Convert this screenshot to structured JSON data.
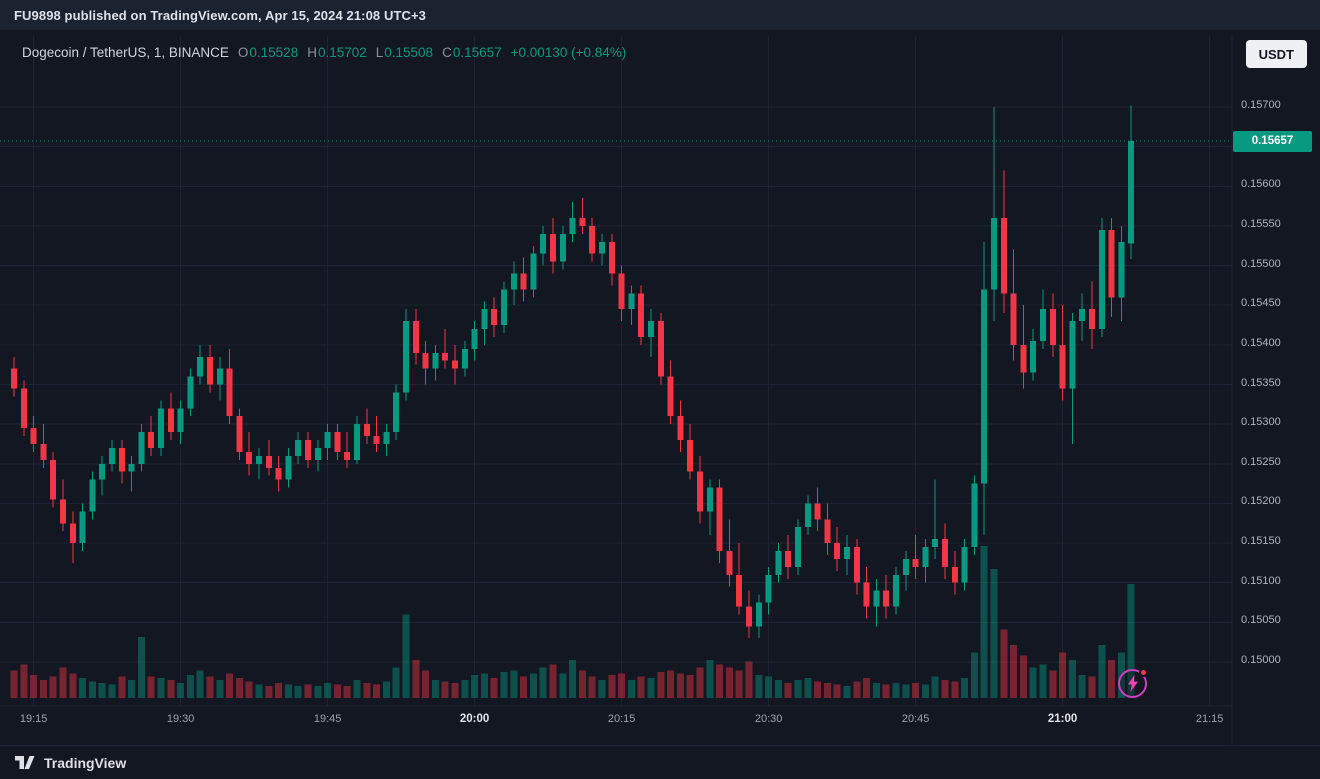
{
  "attribution": {
    "text": "FU9898 published on TradingView.com, Apr 15, 2024 21:08 UTC+3"
  },
  "header": {
    "symbol": "Dogecoin / TetherUS, 1, BINANCE",
    "ohlc": [
      {
        "label": "O",
        "value": "0.15528"
      },
      {
        "label": "H",
        "value": "0.15702"
      },
      {
        "label": "L",
        "value": "0.15508"
      },
      {
        "label": "C",
        "value": "0.15657"
      }
    ],
    "change": "+0.00130 (+0.84%)",
    "currency_button": "USDT"
  },
  "price_axis": {
    "tick_labels": [
      "0.15700",
      "0.15600",
      "0.15550",
      "0.15500",
      "0.15450",
      "0.15400",
      "0.15350",
      "0.15300",
      "0.15250",
      "0.15200",
      "0.15150",
      "0.15100",
      "0.15050",
      "0.15000"
    ],
    "last_price_label": "0.15657"
  },
  "time_axis": {
    "labels": [
      {
        "text": "19:15",
        "index": 2,
        "major": false
      },
      {
        "text": "19:30",
        "index": 17,
        "major": false
      },
      {
        "text": "19:45",
        "index": 32,
        "major": false
      },
      {
        "text": "20:00",
        "index": 47,
        "major": true
      },
      {
        "text": "20:15",
        "index": 62,
        "major": false
      },
      {
        "text": "20:30",
        "index": 77,
        "major": false
      },
      {
        "text": "20:45",
        "index": 92,
        "major": false
      },
      {
        "text": "21:00",
        "index": 107,
        "major": true
      },
      {
        "text": "21:15",
        "index": 122,
        "major": false
      }
    ]
  },
  "footer": {
    "brand": "TradingView"
  },
  "icons": {
    "flash": "lightning-bolt-icon",
    "logo": "tradingview-mark"
  },
  "colors": {
    "bg": "#131722",
    "up": "#089981",
    "down": "#f23645",
    "vol_up": "rgba(8,153,129,0.45)",
    "vol_down": "rgba(242,54,69,0.45)",
    "grid": "#1d2332",
    "axis_text": "#b2b5be",
    "badge_bg": "#089981",
    "badge_text": "#ffffff",
    "flash_ring": "#cf3ec1"
  },
  "chart_data": {
    "type": "candlestick",
    "title": "Dogecoin / TetherUS",
    "exchange": "BINANCE",
    "interval": "1 minute",
    "start_time": "19:13",
    "step_minutes": 1,
    "y_min": 0.15,
    "y_max": 0.157,
    "y_step": 0.0005,
    "last_price": 0.15657,
    "price_unit": 1e-05,
    "candles_format": [
      "open",
      "high",
      "low",
      "close",
      "volume_rel"
    ],
    "candles": [
      [
        15370,
        15385,
        15335,
        15345,
        18
      ],
      [
        15345,
        15355,
        15285,
        15295,
        22
      ],
      [
        15295,
        15310,
        15265,
        15275,
        15
      ],
      [
        15275,
        15300,
        15245,
        15255,
        12
      ],
      [
        15255,
        15265,
        15195,
        15205,
        14
      ],
      [
        15205,
        15230,
        15165,
        15175,
        20
      ],
      [
        15175,
        15190,
        15125,
        15150,
        16
      ],
      [
        15150,
        15200,
        15140,
        15190,
        13
      ],
      [
        15190,
        15240,
        15180,
        15230,
        11
      ],
      [
        15230,
        15260,
        15210,
        15250,
        10
      ],
      [
        15250,
        15280,
        15240,
        15270,
        9
      ],
      [
        15270,
        15280,
        15225,
        15240,
        14
      ],
      [
        15240,
        15260,
        15215,
        15250,
        12
      ],
      [
        15250,
        15300,
        15240,
        15290,
        40
      ],
      [
        15290,
        15310,
        15260,
        15270,
        14
      ],
      [
        15270,
        15330,
        15260,
        15320,
        13
      ],
      [
        15320,
        15340,
        15280,
        15290,
        12
      ],
      [
        15290,
        15330,
        15275,
        15320,
        10
      ],
      [
        15320,
        15370,
        15310,
        15360,
        15
      ],
      [
        15360,
        15400,
        15350,
        15385,
        18
      ],
      [
        15385,
        15400,
        15340,
        15350,
        14
      ],
      [
        15350,
        15385,
        15330,
        15370,
        12
      ],
      [
        15370,
        15395,
        15300,
        15310,
        16
      ],
      [
        15310,
        15320,
        15255,
        15265,
        13
      ],
      [
        15265,
        15290,
        15235,
        15250,
        11
      ],
      [
        15250,
        15270,
        15230,
        15260,
        9
      ],
      [
        15260,
        15280,
        15235,
        15245,
        8
      ],
      [
        15245,
        15260,
        15215,
        15230,
        10
      ],
      [
        15230,
        15270,
        15220,
        15260,
        9
      ],
      [
        15260,
        15290,
        15250,
        15280,
        8
      ],
      [
        15280,
        15290,
        15245,
        15255,
        9
      ],
      [
        15255,
        15280,
        15240,
        15270,
        8
      ],
      [
        15270,
        15300,
        15255,
        15290,
        10
      ],
      [
        15290,
        15300,
        15255,
        15265,
        9
      ],
      [
        15265,
        15290,
        15245,
        15255,
        8
      ],
      [
        15255,
        15310,
        15250,
        15300,
        12
      ],
      [
        15300,
        15320,
        15275,
        15285,
        10
      ],
      [
        15285,
        15310,
        15265,
        15275,
        9
      ],
      [
        15275,
        15300,
        15260,
        15290,
        11
      ],
      [
        15290,
        15350,
        15280,
        15340,
        20
      ],
      [
        15340,
        15445,
        15330,
        15430,
        55
      ],
      [
        15430,
        15445,
        15375,
        15390,
        25
      ],
      [
        15390,
        15405,
        15350,
        15370,
        18
      ],
      [
        15370,
        15400,
        15355,
        15390,
        12
      ],
      [
        15390,
        15420,
        15370,
        15380,
        11
      ],
      [
        15380,
        15400,
        15350,
        15370,
        10
      ],
      [
        15370,
        15405,
        15360,
        15395,
        12
      ],
      [
        15395,
        15430,
        15380,
        15420,
        15
      ],
      [
        15420,
        15455,
        15400,
        15445,
        16
      ],
      [
        15445,
        15460,
        15410,
        15425,
        13
      ],
      [
        15425,
        15480,
        15415,
        15470,
        17
      ],
      [
        15470,
        15505,
        15450,
        15490,
        18
      ],
      [
        15490,
        15510,
        15455,
        15470,
        14
      ],
      [
        15470,
        15525,
        15460,
        15515,
        16
      ],
      [
        15515,
        15550,
        15500,
        15540,
        20
      ],
      [
        15540,
        15560,
        15490,
        15505,
        22
      ],
      [
        15505,
        15550,
        15495,
        15540,
        16
      ],
      [
        15540,
        15580,
        15530,
        15560,
        25
      ],
      [
        15560,
        15585,
        15540,
        15550,
        18
      ],
      [
        15550,
        15560,
        15505,
        15515,
        14
      ],
      [
        15515,
        15540,
        15500,
        15530,
        12
      ],
      [
        15530,
        15540,
        15475,
        15490,
        15
      ],
      [
        15490,
        15500,
        15430,
        15445,
        16
      ],
      [
        15445,
        15475,
        15425,
        15465,
        12
      ],
      [
        15465,
        15475,
        15400,
        15410,
        14
      ],
      [
        15410,
        15445,
        15385,
        15430,
        13
      ],
      [
        15430,
        15440,
        15350,
        15360,
        17
      ],
      [
        15360,
        15380,
        15300,
        15310,
        18
      ],
      [
        15310,
        15330,
        15265,
        15280,
        16
      ],
      [
        15280,
        15300,
        15230,
        15240,
        15
      ],
      [
        15240,
        15260,
        15175,
        15190,
        20
      ],
      [
        15190,
        15230,
        15160,
        15220,
        25
      ],
      [
        15220,
        15230,
        15125,
        15140,
        22
      ],
      [
        15140,
        15180,
        15095,
        15110,
        20
      ],
      [
        15110,
        15150,
        15060,
        15070,
        18
      ],
      [
        15070,
        15090,
        15030,
        15045,
        24
      ],
      [
        15045,
        15085,
        15030,
        15075,
        15
      ],
      [
        15075,
        15120,
        15060,
        15110,
        14
      ],
      [
        15110,
        15150,
        15100,
        15140,
        12
      ],
      [
        15140,
        15160,
        15105,
        15120,
        10
      ],
      [
        15120,
        15180,
        15110,
        15170,
        12
      ],
      [
        15170,
        15210,
        15160,
        15200,
        13
      ],
      [
        15200,
        15220,
        15165,
        15180,
        11
      ],
      [
        15180,
        15200,
        15135,
        15150,
        10
      ],
      [
        15150,
        15170,
        15115,
        15130,
        9
      ],
      [
        15130,
        15160,
        15110,
        15145,
        8
      ],
      [
        15145,
        15155,
        15085,
        15100,
        11
      ],
      [
        15100,
        15120,
        15055,
        15070,
        13
      ],
      [
        15070,
        15105,
        15045,
        15090,
        10
      ],
      [
        15090,
        15110,
        15055,
        15070,
        9
      ],
      [
        15070,
        15120,
        15060,
        15110,
        10
      ],
      [
        15110,
        15140,
        15090,
        15130,
        9
      ],
      [
        15130,
        15160,
        15105,
        15120,
        10
      ],
      [
        15120,
        15155,
        15100,
        15145,
        9
      ],
      [
        15145,
        15230,
        15130,
        15155,
        14
      ],
      [
        15155,
        15175,
        15105,
        15120,
        12
      ],
      [
        15120,
        15140,
        15085,
        15100,
        11
      ],
      [
        15100,
        15155,
        15090,
        15145,
        13
      ],
      [
        15145,
        15235,
        15135,
        15225,
        30
      ],
      [
        15225,
        15530,
        15160,
        15470,
        100
      ],
      [
        15470,
        15700,
        15430,
        15560,
        85
      ],
      [
        15560,
        15620,
        15440,
        15465,
        45
      ],
      [
        15465,
        15520,
        15380,
        15400,
        35
      ],
      [
        15400,
        15450,
        15345,
        15365,
        28
      ],
      [
        15365,
        15420,
        15355,
        15405,
        20
      ],
      [
        15405,
        15470,
        15395,
        15445,
        22
      ],
      [
        15445,
        15465,
        15385,
        15400,
        18
      ],
      [
        15400,
        15450,
        15330,
        15345,
        30
      ],
      [
        15345,
        15440,
        15275,
        15430,
        25
      ],
      [
        15430,
        15465,
        15405,
        15445,
        15
      ],
      [
        15445,
        15480,
        15395,
        15420,
        14
      ],
      [
        15420,
        15560,
        15410,
        15545,
        35
      ],
      [
        15545,
        15560,
        15435,
        15460,
        25
      ],
      [
        15460,
        15550,
        15430,
        15530,
        30
      ],
      [
        15528,
        15702,
        15508,
        15657,
        75
      ]
    ]
  }
}
